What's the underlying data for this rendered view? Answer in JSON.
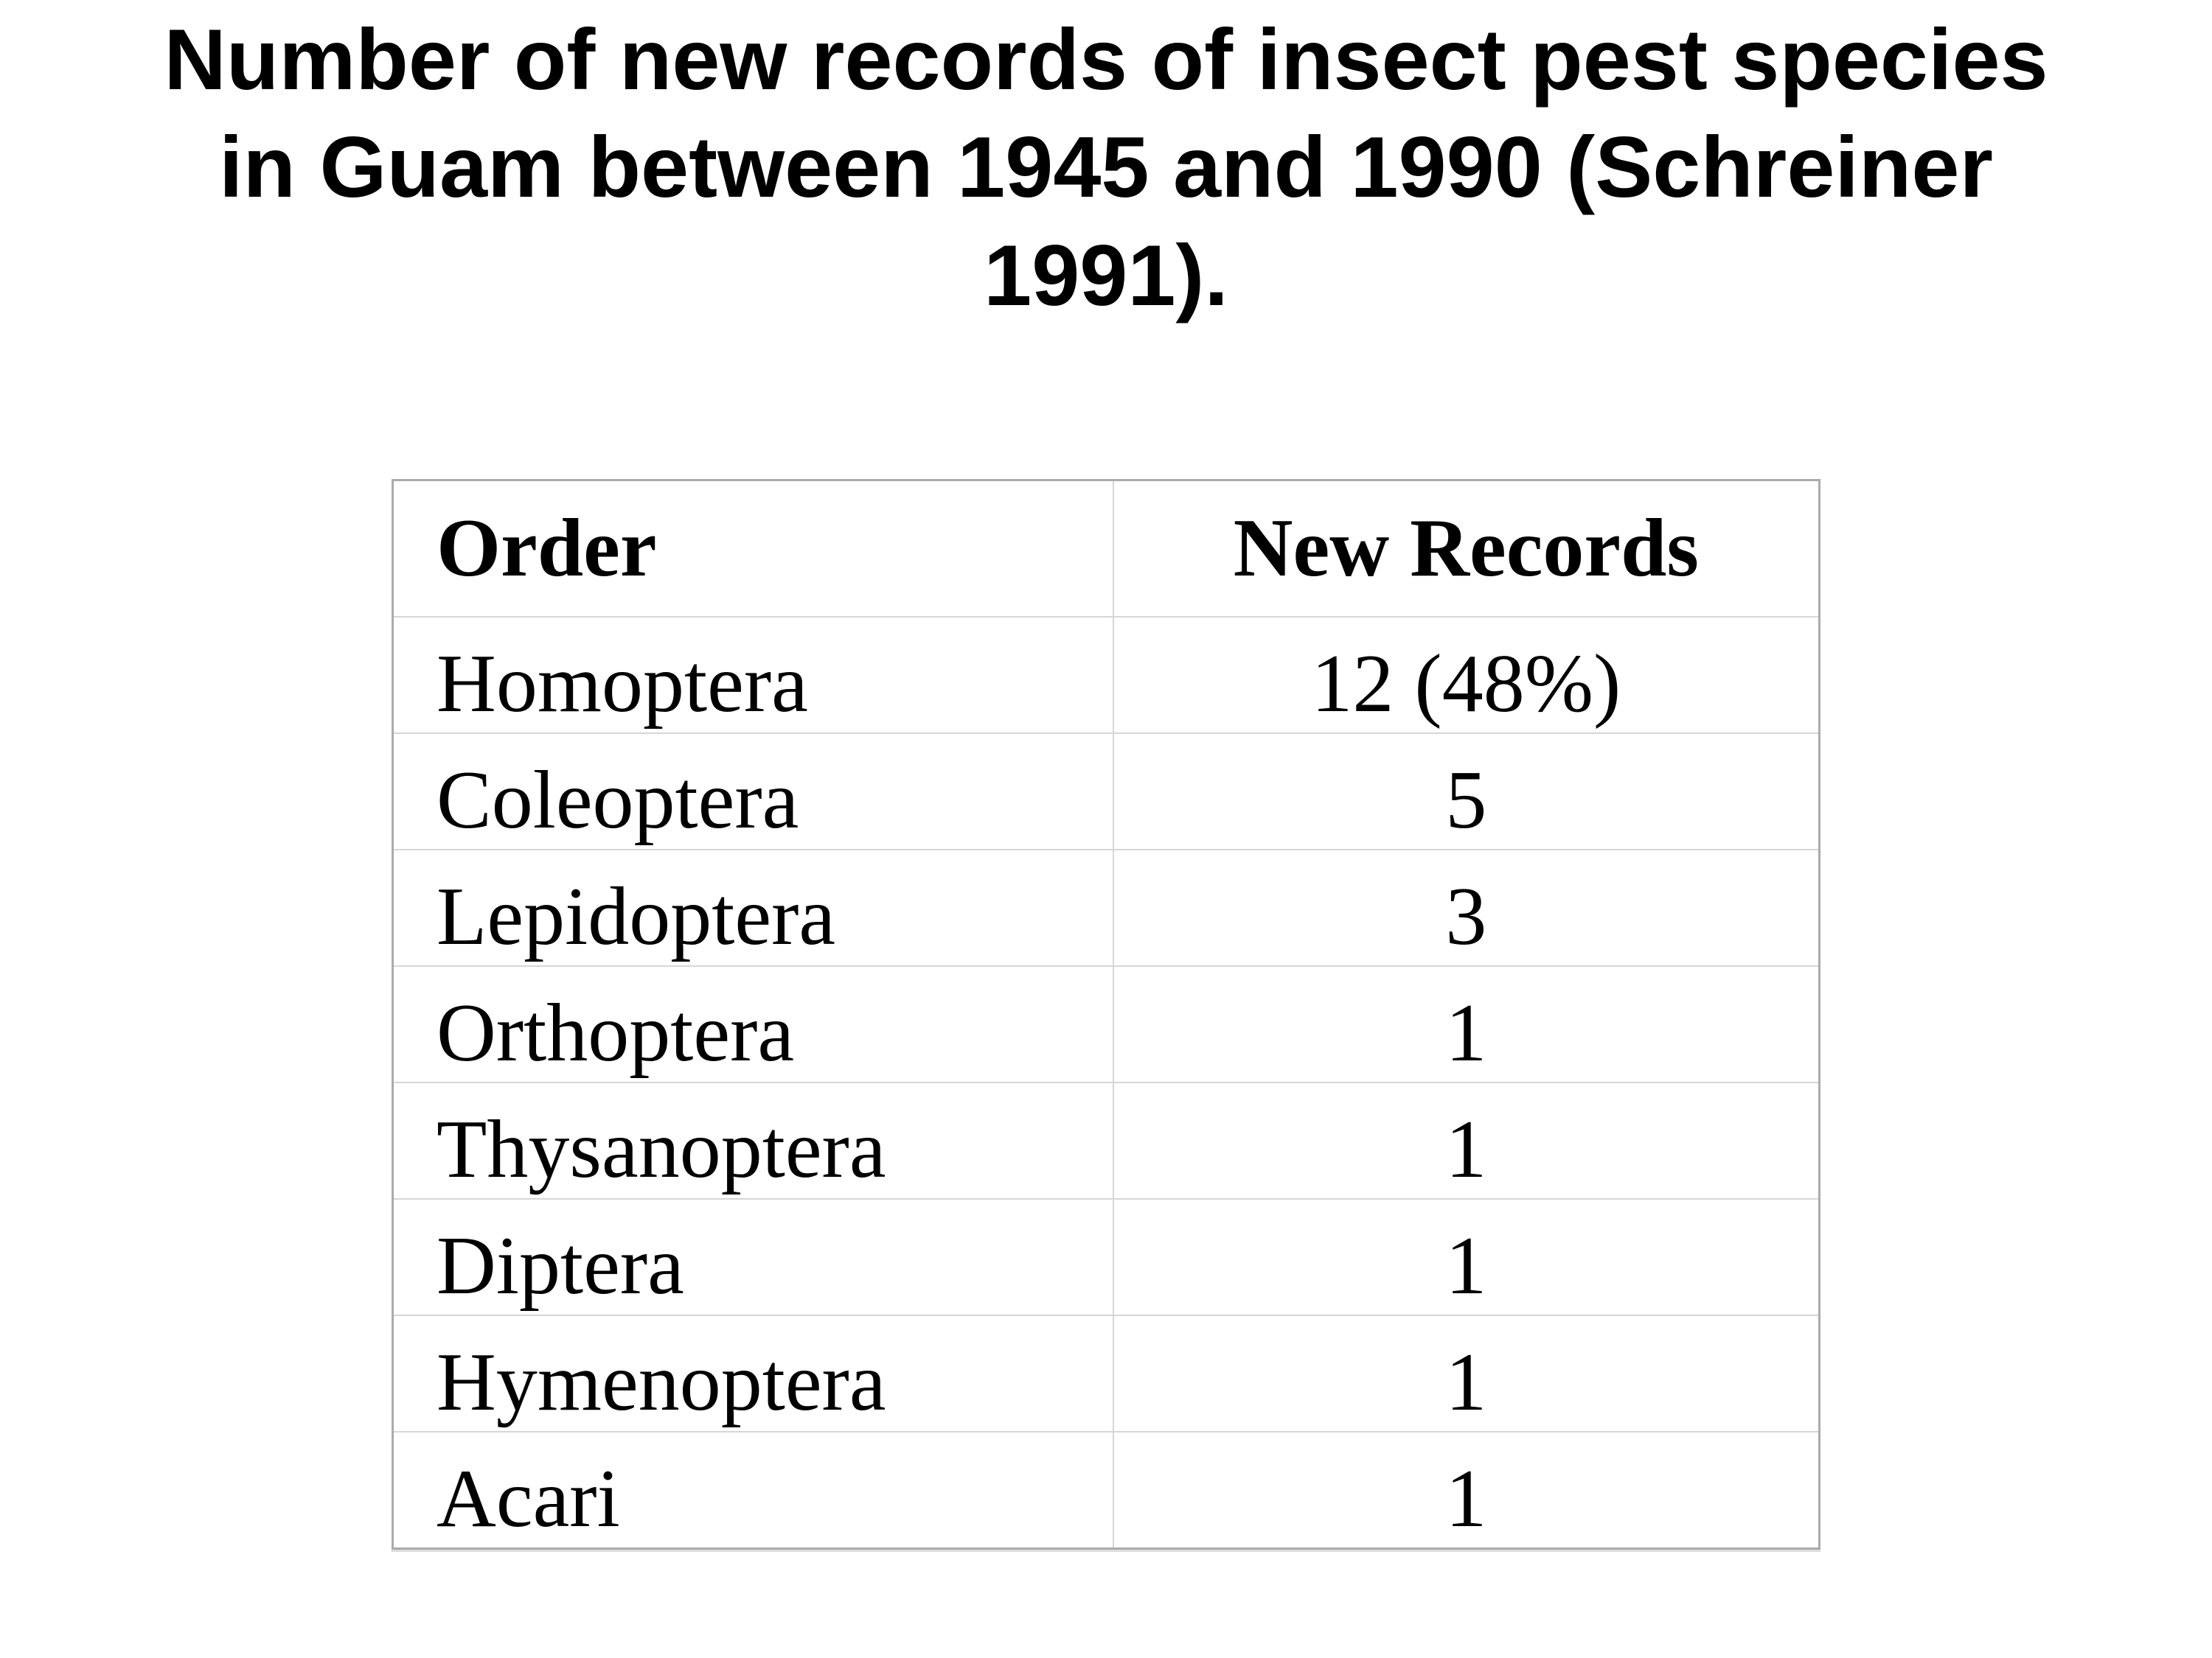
{
  "title": "Number of new records of insect pest species in Guam between 1945 and 1990 (Schreiner 1991).",
  "table": {
    "columns": [
      "Order",
      "New Records"
    ],
    "rows": [
      [
        "Homoptera",
        "12 (48%)"
      ],
      [
        "Coleoptera",
        "5"
      ],
      [
        "Lepidoptera",
        "3"
      ],
      [
        "Orthoptera",
        "1"
      ],
      [
        "Thysanoptera",
        "1"
      ],
      [
        "Diptera",
        "1"
      ],
      [
        "Hymenoptera",
        "1"
      ],
      [
        "Acari",
        "1"
      ]
    ]
  },
  "chart_data": {
    "type": "table",
    "title": "Number of new records of insect pest species in Guam between 1945 and 1990 (Schreiner 1991).",
    "columns": [
      "Order",
      "New Records"
    ],
    "categories": [
      "Homoptera",
      "Coleoptera",
      "Lepidoptera",
      "Orthoptera",
      "Thysanoptera",
      "Diptera",
      "Hymenoptera",
      "Acari"
    ],
    "values": [
      12,
      5,
      3,
      1,
      1,
      1,
      1,
      1
    ],
    "value_labels": [
      "12 (48%)",
      "5",
      "3",
      "1",
      "1",
      "1",
      "1",
      "1"
    ],
    "homoptera_percent_of_total": 48,
    "source": "Schreiner 1991"
  },
  "colors": {
    "background": "#ffffff",
    "text": "#000000",
    "outer_border": "#ababab",
    "inner_border": "#d6d6d6",
    "bottom_shadow": "#dcdcdc"
  }
}
